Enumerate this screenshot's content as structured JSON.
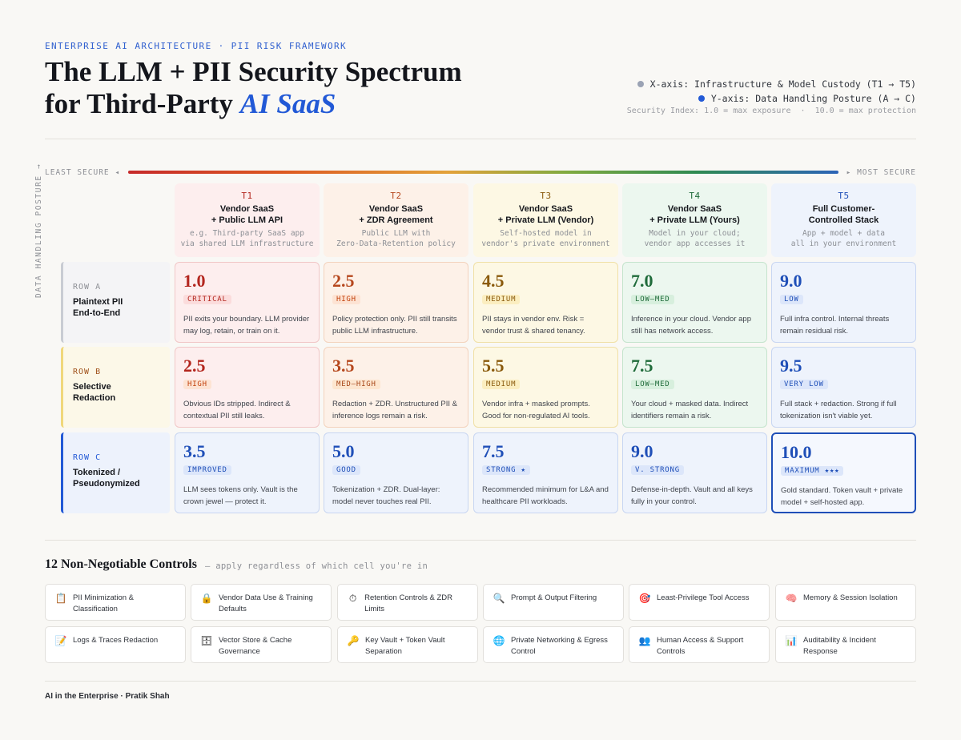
{
  "header": {
    "eyebrow": "ENTERPRISE AI ARCHITECTURE · PII RISK FRAMEWORK",
    "title_line1": "The LLM + PII Security Spectrum",
    "title_line2_prefix": "for Third-Party ",
    "title_line2_em": "AI SaaS"
  },
  "legend": {
    "x_axis": "X-axis: Infrastructure & Model Custody (T1 → T5)",
    "y_axis": "Y-axis: Data Handling Posture (A → C)",
    "index": "Security Index: 1.0 = max exposure  ·  10.0 = max protection",
    "x_color": "#9ba3b4",
    "y_color": "#2259d6"
  },
  "spectrum": {
    "left_label": "LEAST SECURE ◂",
    "right_label": "▸ MOST SECURE"
  },
  "y_axis_label": "DATA HANDLING POSTURE →",
  "tiers": [
    {
      "id": "T1",
      "name1": "Vendor SaaS",
      "name2": "+ Public LLM API",
      "sub1": "e.g. Third-party SaaS app",
      "sub2": "via shared LLM infrastructure",
      "color": "#b3261e",
      "bg": "#fdeeee"
    },
    {
      "id": "T2",
      "name1": "Vendor SaaS",
      "name2": "+ ZDR Agreement",
      "sub1": "Public LLM with",
      "sub2": "Zero-Data-Retention policy",
      "color": "#b6481e",
      "bg": "#fdf1e8"
    },
    {
      "id": "T3",
      "name1": "Vendor SaaS",
      "name2": "+ Private LLM (Vendor)",
      "sub1": "Self-hosted model in",
      "sub2": "vendor's private environment",
      "color": "#8a5a0c",
      "bg": "#fdf8e4"
    },
    {
      "id": "T4",
      "name1": "Vendor SaaS",
      "name2": "+ Private LLM (Yours)",
      "sub1": "Model in your cloud;",
      "sub2": "vendor app accesses it",
      "color": "#1f6b3a",
      "bg": "#ecf7ef"
    },
    {
      "id": "T5",
      "name1": "Full Customer-",
      "name2": "Controlled Stack",
      "sub1": "App + model + data",
      "sub2": "all in your environment",
      "color": "#1f4fb8",
      "bg": "#eef3fc"
    }
  ],
  "rows": [
    {
      "tag": "ROW A",
      "name1": "Plaintext PII",
      "name2": "End-to-End",
      "color": "#8d8f95",
      "bar": "#c9ccd3",
      "bg": "#f4f4f6"
    },
    {
      "tag": "ROW B",
      "name1": "Selective",
      "name2": "Redaction",
      "color": "#a0521b",
      "bar": "#f0d77a",
      "bg": "#fcf8e8"
    },
    {
      "tag": "ROW C",
      "name1": "Tokenized /",
      "name2": "Pseudonymized",
      "color": "#2259d6",
      "bar": "#2259d6",
      "bg": "#edf2fc"
    }
  ],
  "cells": [
    [
      {
        "score": "1.0",
        "badge": "CRITICAL",
        "desc": "PII exits your boundary. LLM provider may log, retain, or train on it."
      },
      {
        "score": "2.5",
        "badge": "HIGH",
        "desc": "Policy protection only. PII still transits public LLM infrastructure."
      },
      {
        "score": "4.5",
        "badge": "MEDIUM",
        "desc": "PII stays in vendor env. Risk = vendor trust & shared tenancy."
      },
      {
        "score": "7.0",
        "badge": "LOW–MED",
        "desc": "Inference in your cloud. Vendor app still has network access."
      },
      {
        "score": "9.0",
        "badge": "LOW",
        "desc": "Full infra control. Internal threats remain residual risk."
      }
    ],
    [
      {
        "score": "2.5",
        "badge": "HIGH",
        "desc": "Obvious IDs stripped. Indirect & contextual PII still leaks."
      },
      {
        "score": "3.5",
        "badge": "MED–HIGH",
        "desc": "Redaction + ZDR. Unstructured PII & inference logs remain a risk."
      },
      {
        "score": "5.5",
        "badge": "MEDIUM",
        "desc": "Vendor infra + masked prompts. Good for non-regulated AI tools."
      },
      {
        "score": "7.5",
        "badge": "LOW–MED",
        "desc": "Your cloud + masked data. Indirect identifiers remain a risk."
      },
      {
        "score": "9.5",
        "badge": "VERY LOW",
        "desc": "Full stack + redaction. Strong if full tokenization isn't viable yet."
      }
    ],
    [
      {
        "score": "3.5",
        "badge": "IMPROVED",
        "desc": "LLM sees tokens only. Vault is the crown jewel — protect it."
      },
      {
        "score": "5.0",
        "badge": "GOOD",
        "desc": "Tokenization + ZDR. Dual-layer: model never touches real PII."
      },
      {
        "score": "7.5",
        "badge": "STRONG ★",
        "desc": "Recommended minimum for L&A and healthcare PII workloads."
      },
      {
        "score": "9.0",
        "badge": "V. STRONG",
        "desc": "Defense-in-depth. Vault and all keys fully in your control."
      },
      {
        "score": "10.0",
        "badge": "MAXIMUM ★★★",
        "desc": "Gold standard. Token vault + private model + self-hosted app."
      }
    ]
  ],
  "controls": {
    "title": "12 Non-Negotiable Controls",
    "subtitle": "— apply regardless of which cell you're in",
    "items": [
      {
        "icon": "📋",
        "icon_name": "clipboard-icon",
        "label1": "PII Minimization &",
        "label2": "Classification"
      },
      {
        "icon": "🔒",
        "icon_name": "lock-icon",
        "label1": "Vendor Data Use & Training",
        "label2": "Defaults"
      },
      {
        "icon": "⏱",
        "icon_name": "stopwatch-icon",
        "label1": "Retention Controls & ZDR Limits",
        "label2": ""
      },
      {
        "icon": "🔍",
        "icon_name": "magnifier-icon",
        "label1": "Prompt & Output Filtering",
        "label2": ""
      },
      {
        "icon": "🎯",
        "icon_name": "target-icon",
        "label1": "Least-Privilege Tool Access",
        "label2": ""
      },
      {
        "icon": "🧠",
        "icon_name": "brain-icon",
        "label1": "Memory & Session Isolation",
        "label2": ""
      },
      {
        "icon": "📝",
        "icon_name": "memo-icon",
        "label1": "Logs & Traces Redaction",
        "label2": ""
      },
      {
        "icon": "🗄",
        "icon_name": "file-cabinet-icon",
        "label1": "Vector Store & Cache",
        "label2": "Governance"
      },
      {
        "icon": "🔑",
        "icon_name": "key-icon",
        "label1": "Key Vault + Token Vault",
        "label2": "Separation"
      },
      {
        "icon": "🌐",
        "icon_name": "globe-icon",
        "label1": "Private Networking & Egress",
        "label2": "Control"
      },
      {
        "icon": "👥",
        "icon_name": "people-icon",
        "label1": "Human Access & Support",
        "label2": "Controls"
      },
      {
        "icon": "📊",
        "icon_name": "bar-chart-icon",
        "label1": "Auditability & Incident",
        "label2": "Response"
      }
    ]
  },
  "footer": "AI in the Enterprise · Pratik Shah"
}
